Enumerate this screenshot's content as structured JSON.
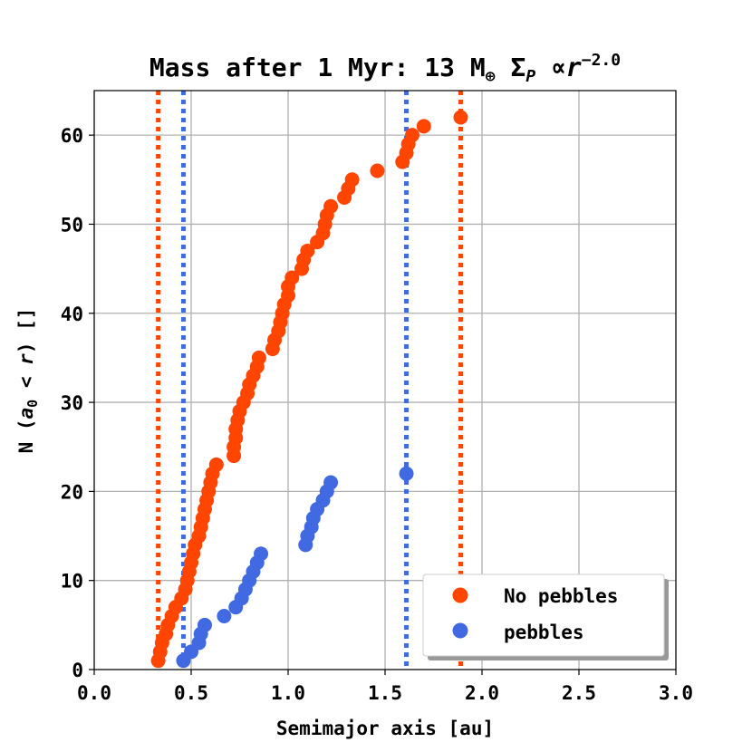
{
  "chart_data": {
    "type": "scatter",
    "title": {
      "main": "Mass after 1 Myr: 13 M",
      "earth_symbol": "⊕",
      "sigma_part": "Σ",
      "sigma_sub": "P",
      "propto": "∝",
      "r_part": "r",
      "exponent": "−2.0"
    },
    "xlabel": "Semimajor axis [au]",
    "ylabel": {
      "prefix": "N (",
      "a": "a",
      "a_sub": "0",
      "lt": "<",
      "r": "r",
      "suffix": ") []"
    },
    "xlim": [
      0.0,
      3.0
    ],
    "ylim": [
      0,
      65
    ],
    "xticks": [
      0.0,
      0.5,
      1.0,
      1.5,
      2.0,
      2.5,
      3.0
    ],
    "xtick_labels": [
      "0.0",
      "0.5",
      "1.0",
      "1.5",
      "2.0",
      "2.5",
      "3.0"
    ],
    "yticks": [
      0,
      10,
      20,
      30,
      40,
      50,
      60
    ],
    "ytick_labels": [
      "0",
      "10",
      "20",
      "30",
      "40",
      "50",
      "60"
    ],
    "grid": true,
    "legend_position": "bottom-right",
    "series": [
      {
        "name": "No pebbles",
        "color": "#ff4500",
        "x": [
          0.33,
          0.34,
          0.35,
          0.37,
          0.38,
          0.4,
          0.42,
          0.45,
          0.47,
          0.48,
          0.49,
          0.5,
          0.51,
          0.52,
          0.54,
          0.55,
          0.56,
          0.57,
          0.58,
          0.59,
          0.6,
          0.61,
          0.63,
          0.72,
          0.72,
          0.73,
          0.73,
          0.74,
          0.75,
          0.77,
          0.79,
          0.8,
          0.82,
          0.84,
          0.85,
          0.92,
          0.93,
          0.95,
          0.96,
          0.97,
          0.98,
          1.0,
          1.0,
          1.02,
          1.07,
          1.08,
          1.1,
          1.15,
          1.18,
          1.19,
          1.2,
          1.22,
          1.29,
          1.31,
          1.33,
          1.46,
          1.59,
          1.61,
          1.62,
          1.64,
          1.7,
          1.89
        ],
        "y": [
          1,
          2,
          3,
          4,
          5,
          6,
          7,
          8,
          9,
          10,
          11,
          12,
          13,
          14,
          15,
          16,
          17,
          18,
          19,
          20,
          21,
          22,
          23,
          24,
          25,
          26,
          27,
          28,
          29,
          30,
          31,
          32,
          33,
          34,
          35,
          36,
          37,
          38,
          39,
          40,
          41,
          42,
          43,
          44,
          45,
          46,
          47,
          48,
          49,
          50,
          51,
          52,
          53,
          54,
          55,
          56,
          57,
          58,
          59,
          60,
          61,
          62
        ]
      },
      {
        "name": "pebbles",
        "color": "#4169e1",
        "x": [
          0.46,
          0.5,
          0.54,
          0.55,
          0.57,
          0.67,
          0.73,
          0.76,
          0.78,
          0.8,
          0.82,
          0.84,
          0.86,
          1.09,
          1.1,
          1.12,
          1.13,
          1.15,
          1.18,
          1.2,
          1.22,
          1.61
        ],
        "y": [
          1,
          2,
          3,
          4,
          5,
          6,
          7,
          8,
          9,
          10,
          11,
          12,
          13,
          14,
          15,
          16,
          17,
          18,
          19,
          20,
          21,
          22
        ]
      }
    ],
    "vlines": [
      {
        "x": 0.33,
        "color": "#ff4500",
        "style": "dotted"
      },
      {
        "x": 0.46,
        "color": "#4169e1",
        "style": "dotted"
      },
      {
        "x": 1.61,
        "color": "#4169e1",
        "style": "dotted"
      },
      {
        "x": 1.89,
        "color": "#ff4500",
        "style": "dotted"
      }
    ]
  }
}
